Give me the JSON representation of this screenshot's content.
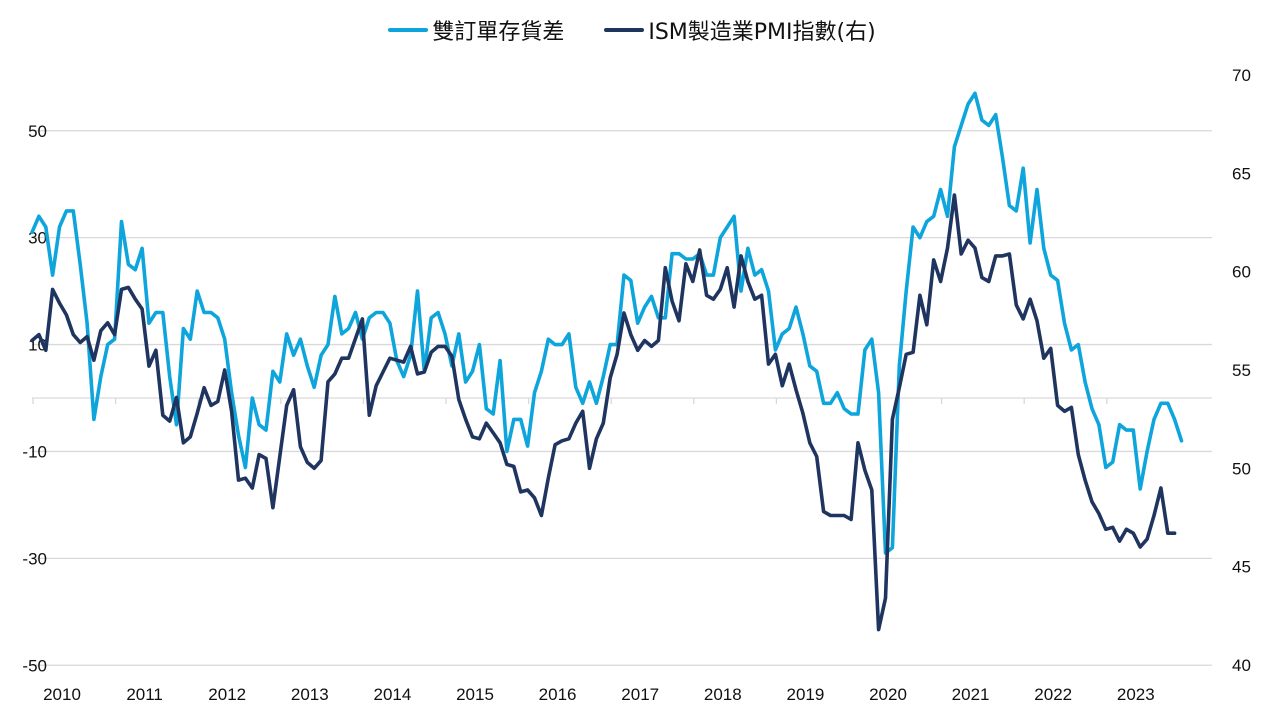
{
  "chart_data": {
    "type": "line",
    "title": "",
    "legend": {
      "placement": "top-center"
    },
    "x_start": "2010-01",
    "x_frequency": "monthly",
    "x_tick_labels": [
      "2010",
      "2011",
      "2012",
      "2013",
      "2014",
      "2015",
      "2016",
      "2017",
      "2018",
      "2019",
      "2020",
      "2021",
      "2022",
      "2023"
    ],
    "y_left": {
      "label": "",
      "ticks": [
        50,
        30,
        10,
        -10,
        -30,
        -50
      ],
      "tick_labels": [
        "50",
        "30",
        "10",
        "-10",
        "-30",
        "-50"
      ],
      "range": [
        -50,
        60
      ]
    },
    "y_right": {
      "label": "",
      "ticks": [
        70,
        65,
        60,
        55,
        50,
        45,
        40
      ],
      "tick_labels": [
        "70",
        "65",
        "60",
        "55",
        "50",
        "45",
        "40"
      ],
      "range": [
        40,
        70
      ]
    },
    "grid": true,
    "series": [
      {
        "name": "雙訂單存貨差",
        "axis": "left",
        "color": "#0ea5dc",
        "values": [
          31,
          34,
          32,
          23,
          32,
          35,
          35,
          25,
          14,
          -4,
          4,
          10,
          11,
          33,
          25,
          24,
          28,
          14,
          16,
          16,
          4,
          -5,
          13,
          11,
          20,
          16,
          16,
          15,
          11,
          1,
          -7,
          -13,
          0,
          -5,
          -6,
          5,
          3,
          12,
          8,
          11,
          6,
          2,
          8,
          10,
          19,
          12,
          13,
          16,
          11,
          15,
          16,
          16,
          14,
          7,
          4,
          8,
          20,
          5,
          15,
          16,
          12,
          6,
          12,
          3,
          5,
          10,
          -2,
          -3,
          7,
          -10,
          -4,
          -4,
          -9,
          1,
          5,
          11,
          10,
          10,
          12,
          2,
          -1,
          3,
          -1,
          4,
          10,
          10,
          23,
          22,
          14,
          17,
          19,
          15,
          15,
          27,
          27,
          26,
          26,
          27,
          23,
          23,
          30,
          32,
          34,
          20,
          28,
          23,
          24,
          20,
          9,
          12,
          13,
          17,
          12,
          6,
          5,
          -1,
          -1,
          1,
          -2,
          -3,
          -3,
          9,
          11,
          1,
          -29,
          -28,
          6,
          20,
          32,
          30,
          33,
          34,
          39,
          34,
          47,
          51,
          55,
          57,
          52,
          51,
          53,
          45,
          36,
          35,
          43,
          29,
          39,
          28,
          23,
          22,
          14,
          9,
          10,
          3,
          -2,
          -5,
          -13,
          -12,
          -5,
          -6,
          -6,
          -17,
          -10,
          -4,
          -1,
          -1,
          -4,
          -8
        ],
        "note": "values estimated from pixel positions"
      },
      {
        "name": "ISM製造業PMI指數(右)",
        "axis": "right",
        "color": "#1f3560",
        "values": [
          56.5,
          56.8,
          56.0,
          59.1,
          58.4,
          57.8,
          56.8,
          56.4,
          56.7,
          55.5,
          57.0,
          57.4,
          56.8,
          59.1,
          59.2,
          58.6,
          58.1,
          55.2,
          56.0,
          52.7,
          52.4,
          53.6,
          51.3,
          51.6,
          52.8,
          54.1,
          53.2,
          53.4,
          55.0,
          52.9,
          49.4,
          49.5,
          49.0,
          50.7,
          50.5,
          48.0,
          50.6,
          53.2,
          54.0,
          51.1,
          50.3,
          50.0,
          50.4,
          54.4,
          54.8,
          55.6,
          55.6,
          56.6,
          57.6,
          52.7,
          54.2,
          54.9,
          55.6,
          55.5,
          55.4,
          56.2,
          54.8,
          54.9,
          55.9,
          56.2,
          56.2,
          55.7,
          53.5,
          52.5,
          51.6,
          51.5,
          52.3,
          51.8,
          51.3,
          50.2,
          50.1,
          48.8,
          48.9,
          48.5,
          47.6,
          49.5,
          51.2,
          51.4,
          51.5,
          52.3,
          52.9,
          50.0,
          51.5,
          52.3,
          54.6,
          55.8,
          57.9,
          56.8,
          56.0,
          56.5,
          56.2,
          56.5,
          60.2,
          58.5,
          57.5,
          60.4,
          59.5,
          61.1,
          58.8,
          58.6,
          59.1,
          60.2,
          58.2,
          60.8,
          59.5,
          58.6,
          58.8,
          55.3,
          55.8,
          54.2,
          55.3,
          54.0,
          52.8,
          51.3,
          50.6,
          47.8,
          47.6,
          47.6,
          47.6,
          47.4,
          51.3,
          49.9,
          48.9,
          41.8,
          43.4,
          52.5,
          54.1,
          55.8,
          55.9,
          58.8,
          57.3,
          60.6,
          59.5,
          61.2,
          63.9,
          60.9,
          61.6,
          61.2,
          59.7,
          59.5,
          60.8,
          60.8,
          60.9,
          58.3,
          57.6,
          58.6,
          57.5,
          55.6,
          56.1,
          53.2,
          52.9,
          53.1,
          50.7,
          49.4,
          48.3,
          47.7,
          46.9,
          47.0,
          46.3,
          46.9,
          46.7,
          46.0,
          46.4,
          47.6,
          49.0,
          46.7,
          46.7
        ],
        "note": "values estimated from pixel positions"
      }
    ]
  }
}
